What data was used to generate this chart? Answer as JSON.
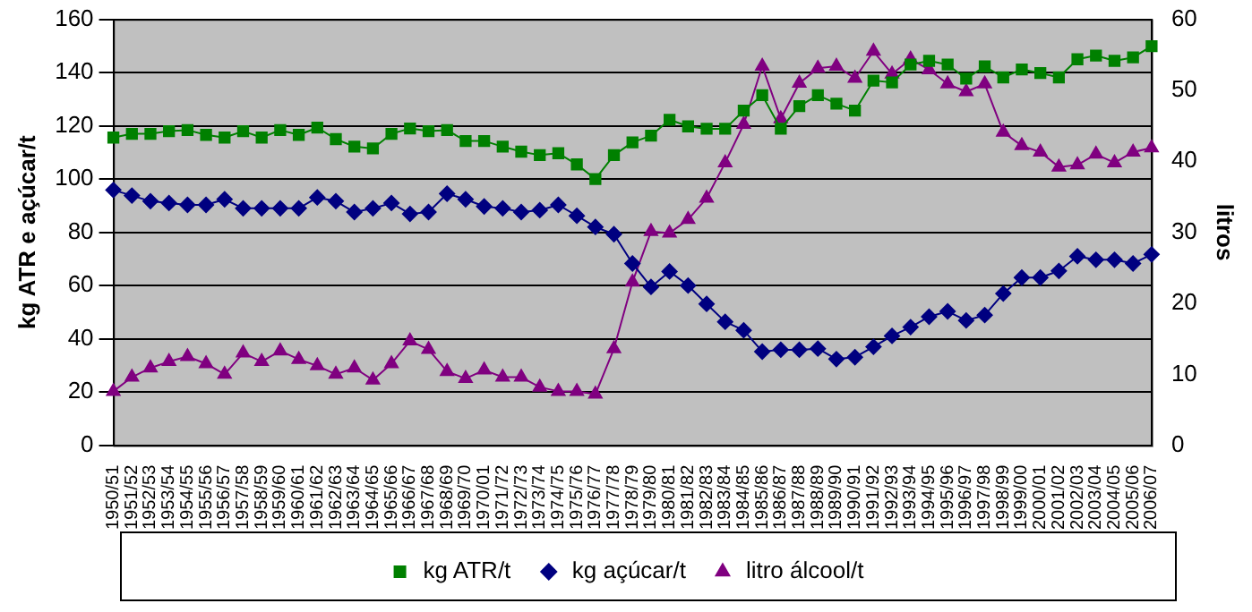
{
  "chart_data": {
    "type": "line",
    "ylabel": "kg ATR e açúcar/t",
    "y2label": "litros",
    "categories": [
      "1950/51",
      "1951/52",
      "1952/53",
      "1953/54",
      "1954/55",
      "1955/56",
      "1956/57",
      "1957/58",
      "1958/59",
      "1959/60",
      "1960/61",
      "1961/62",
      "1962/63",
      "1963/64",
      "1964/65",
      "1965/66",
      "1966/67",
      "1967/68",
      "1968/69",
      "1969/70",
      "1970/01",
      "1971/72",
      "1972/73",
      "1973/74",
      "1974/75",
      "1975/76",
      "1976/77",
      "1977/78",
      "1978/79",
      "1979/80",
      "1980/81",
      "1981/82",
      "1982/83",
      "1983/84",
      "1984/85",
      "1985/86",
      "1986/87",
      "1987/88",
      "1988/89",
      "1989/90",
      "1990/91",
      "1991/92",
      "1992/93",
      "1993/94",
      "1994/95",
      "1995/96",
      "1996/97",
      "1997/98",
      "1998/99",
      "1999/00",
      "2000/01",
      "2001/02",
      "2002/03",
      "2003/04",
      "2004/05",
      "2005/06",
      "2006/07"
    ],
    "series": [
      {
        "name": "kg ATR/t",
        "color": "#008000",
        "marker": "square",
        "values": [
          115.6,
          117,
          117,
          118,
          118.4,
          116.6,
          115.6,
          118,
          115.6,
          118.4,
          116.6,
          119.3,
          115,
          112.2,
          111.5,
          117,
          119,
          118,
          118.4,
          114.3,
          114.3,
          112.2,
          110.3,
          109,
          109.7,
          105.5,
          100,
          109,
          113.8,
          116.3,
          122.3,
          119.8,
          118.9,
          118.9,
          125.7,
          131.5,
          118.9,
          127.4,
          131.5,
          128.3,
          125.7,
          137,
          136.3,
          143,
          144.4,
          143,
          137.7,
          142.3,
          138.2,
          141.2,
          139.8,
          138.2,
          145,
          146.4,
          144.4,
          145.7,
          149.9
        ]
      },
      {
        "name": "kg açúcar/t",
        "color": "#000080",
        "marker": "diamond",
        "values": [
          95.9,
          93.8,
          91.7,
          91,
          90.3,
          90.3,
          92.4,
          89,
          89,
          89,
          89,
          93.1,
          91.7,
          87.6,
          89,
          91,
          86.9,
          87.6,
          94.5,
          92.4,
          89.7,
          89,
          87.6,
          88.3,
          90.3,
          86.2,
          82,
          79.3,
          68.3,
          59.5,
          65.3,
          60,
          53.1,
          46.4,
          43.2,
          35.2,
          35.9,
          35.9,
          36.3,
          32.4,
          33.1,
          37,
          41.1,
          44.4,
          48.3,
          50.3,
          46.9,
          48.9,
          57,
          63,
          63,
          65.5,
          71,
          69.7,
          69.7,
          68.3,
          71.7
        ]
      },
      {
        "name": "litro álcool/t",
        "color": "#800080",
        "marker": "triangle",
        "axis": "y2",
        "values": [
          7.6,
          9.6,
          10.9,
          11.8,
          12.5,
          11.5,
          10,
          13,
          11.8,
          13.3,
          12.1,
          11.2,
          10,
          10.9,
          9.2,
          11.5,
          14.7,
          13.5,
          10.4,
          9.4,
          10.6,
          9.6,
          9.6,
          8.2,
          7.6,
          7.6,
          7.2,
          13.6,
          23,
          30.1,
          29.9,
          31.8,
          34.8,
          39.8,
          45.2,
          53.4,
          46,
          51,
          53.1,
          53.4,
          51.7,
          55.5,
          52.3,
          54.4,
          52.9,
          50.9,
          49.8,
          50.9,
          44.1,
          42.2,
          41.3,
          39.2,
          39.5,
          41,
          39.8,
          41.3,
          41.9
        ]
      }
    ],
    "ylim": [
      0,
      160
    ],
    "yticks": [
      0,
      20,
      40,
      60,
      80,
      100,
      120,
      140,
      160
    ],
    "y2lim": [
      0,
      60
    ],
    "y2ticks": [
      0,
      10,
      20,
      30,
      40,
      50,
      60
    ],
    "grid": "y",
    "legend": "bottom",
    "line_style": "solid"
  }
}
